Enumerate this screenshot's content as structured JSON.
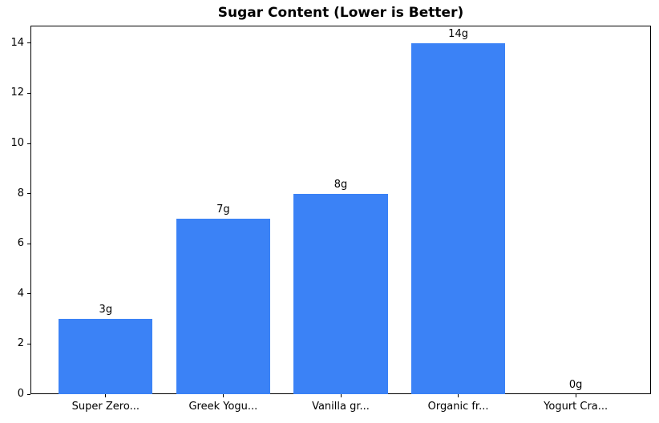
{
  "chart_data": {
    "type": "bar",
    "title": "Sugar Content (Lower is Better)",
    "categories": [
      "Super Zero...",
      "Greek Yogu...",
      "Vanilla gr...",
      "Organic fr...",
      "Yogurt Cra..."
    ],
    "values": [
      3,
      7,
      8,
      14,
      0
    ],
    "bar_labels": [
      "3g",
      "7g",
      "8g",
      "14g",
      "0g"
    ],
    "yticks": [
      0,
      2,
      4,
      6,
      8,
      10,
      12,
      14
    ],
    "ylim": [
      0,
      14.7
    ],
    "xlabel": "",
    "ylabel": "",
    "grid": false,
    "legend": null,
    "bar_color": "#3b82f6",
    "axis_color": "#000000",
    "text_color": "#000000",
    "background_color": "#ffffff"
  }
}
